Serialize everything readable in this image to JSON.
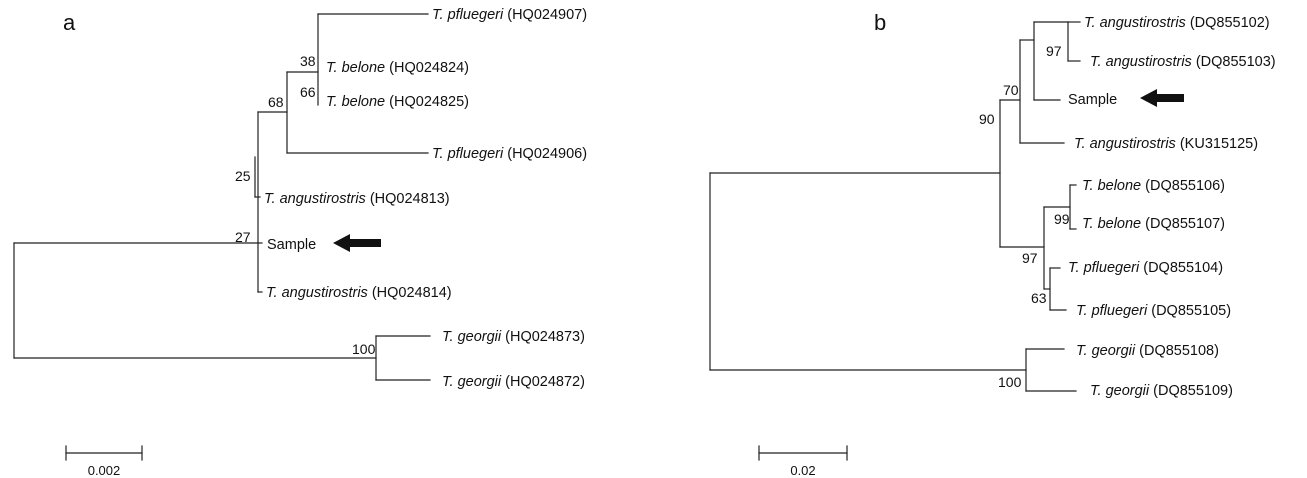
{
  "panels": [
    {
      "label": "a",
      "scale_label": "0.002",
      "taxa": [
        {
          "species": "T. pfluegeri",
          "accession": "(HQ024907)"
        },
        {
          "species": "T. belone",
          "accession": "(HQ024824)"
        },
        {
          "species": "T. belone",
          "accession": "(HQ024825)"
        },
        {
          "species": "T. pfluegeri",
          "accession": "(HQ024906)"
        },
        {
          "species": "T. angustirostris",
          "accession": "(HQ024813)"
        },
        {
          "species": "",
          "accession": "Sample"
        },
        {
          "species": "T. angustirostris",
          "accession": "(HQ024814)"
        },
        {
          "species": "T. georgii",
          "accession": "(HQ024873)"
        },
        {
          "species": "T. georgii",
          "accession": "(HQ024872)"
        }
      ],
      "support_values": [
        "38",
        "66",
        "68",
        "25",
        "27",
        "100"
      ]
    },
    {
      "label": "b",
      "scale_label": "0.02",
      "taxa": [
        {
          "species": "T. angustirostris",
          "accession": "(DQ855102)"
        },
        {
          "species": "T. angustirostris",
          "accession": "(DQ855103)"
        },
        {
          "species": "",
          "accession": "Sample"
        },
        {
          "species": "T. angustirostris",
          "accession": "(KU315125)"
        },
        {
          "species": "T. belone",
          "accession": "(DQ855106)"
        },
        {
          "species": "T. belone",
          "accession": "(DQ855107)"
        },
        {
          "species": "T. pfluegeri",
          "accession": "(DQ855104)"
        },
        {
          "species": "T. pfluegeri",
          "accession": "(DQ855105)"
        },
        {
          "species": "T. georgii",
          "accession": "(DQ855108)"
        },
        {
          "species": "T. georgii",
          "accession": "(DQ855109)"
        }
      ],
      "support_values": [
        "97",
        "70",
        "90",
        "99",
        "97",
        "63",
        "100"
      ]
    }
  ],
  "arrow_icon": "left-arrow-icon",
  "colors": {
    "line": "#222222",
    "text": "#111111",
    "arrow": "#111111",
    "background": "#ffffff"
  }
}
